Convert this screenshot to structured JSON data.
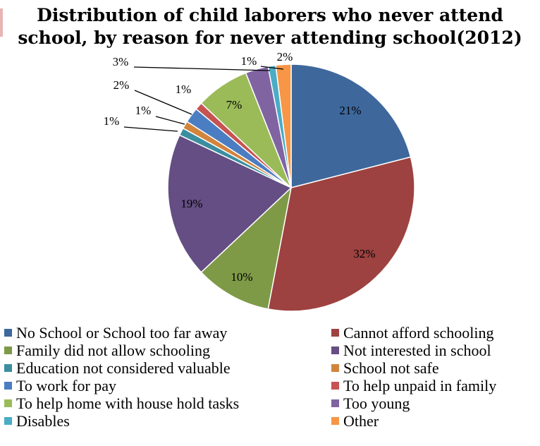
{
  "chart_data": {
    "type": "pie",
    "title": [
      "Distribution of child laborers who never attend",
      "school, by reason for never attending school(2012)"
    ],
    "unit": "%",
    "slices": [
      {
        "name": "No School or School too far away",
        "value": 21,
        "label": "21%",
        "color": "#3e689c"
      },
      {
        "name": "Cannot afford schooling",
        "value": 32,
        "label": "32%",
        "color": "#9d4240"
      },
      {
        "name": "Family did not allow schooling",
        "value": 10,
        "label": "10%",
        "color": "#7e9a47"
      },
      {
        "name": "Not interested in school",
        "value": 19,
        "label": "19%",
        "color": "#654e83"
      },
      {
        "name": "Education not considered valuable",
        "value": 1,
        "label": "1%",
        "color": "#3a8ea0"
      },
      {
        "name": "School not safe",
        "value": 1,
        "label": "1%",
        "color": "#d1843c"
      },
      {
        "name": "To work for pay",
        "value": 2,
        "label": "2%",
        "color": "#4b7dc2"
      },
      {
        "name": "To help unpaid in family",
        "value": 1,
        "label": "1%",
        "color": "#c65351"
      },
      {
        "name": "To help home with house hold tasks",
        "value": 7,
        "label": "7%",
        "color": "#9bbb59"
      },
      {
        "name": "Too young",
        "value": 3,
        "label": "3%",
        "color": "#8064a2"
      },
      {
        "name": "Disables",
        "value": 1,
        "label": "1%",
        "color": "#4bacc6"
      },
      {
        "name": "Other",
        "value": 2,
        "label": "2%",
        "color": "#f79646"
      }
    ],
    "legend_position": "bottom"
  }
}
